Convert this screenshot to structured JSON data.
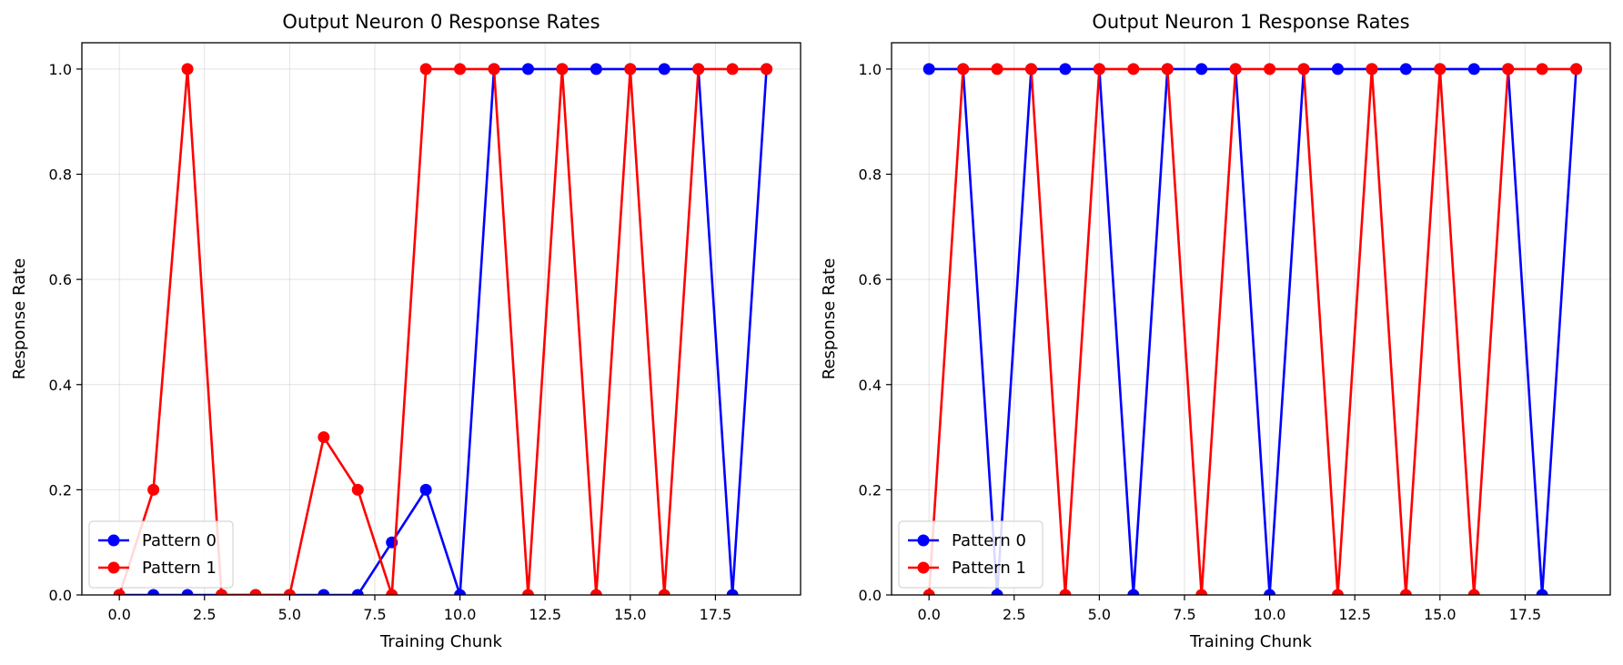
{
  "chart_data": [
    {
      "type": "line",
      "title": "Output Neuron 0 Response Rates",
      "xlabel": "Training Chunk",
      "ylabel": "Response Rate",
      "xlim": [
        -1.1,
        20.0
      ],
      "ylim": [
        0.0,
        1.05
      ],
      "xticks": [
        "0.0",
        "2.5",
        "5.0",
        "7.5",
        "10.0",
        "12.5",
        "15.0",
        "17.5"
      ],
      "yticks": [
        "0.0",
        "0.2",
        "0.4",
        "0.6",
        "0.8",
        "1.0"
      ],
      "grid": true,
      "legend_position": "lower-left",
      "x": [
        0,
        1,
        2,
        3,
        4,
        5,
        6,
        7,
        8,
        9,
        10,
        11,
        12,
        13,
        14,
        15,
        16,
        17,
        18,
        19
      ],
      "series": [
        {
          "name": "Pattern 0",
          "color": "#0000ff",
          "values": [
            0,
            0,
            0,
            0,
            0,
            0,
            0,
            0,
            0.1,
            0.2,
            0,
            1,
            1,
            1,
            1,
            1,
            1,
            1,
            0,
            1
          ]
        },
        {
          "name": "Pattern 1",
          "color": "#ff0000",
          "values": [
            0,
            0.2,
            1,
            0,
            0,
            0,
            0.3,
            0.2,
            0,
            1,
            1,
            1,
            0,
            1,
            0,
            1,
            0,
            1,
            1,
            1
          ]
        }
      ]
    },
    {
      "type": "line",
      "title": "Output Neuron 1 Response Rates",
      "xlabel": "Training Chunk",
      "ylabel": "Response Rate",
      "xlim": [
        -1.1,
        20.0
      ],
      "ylim": [
        0.0,
        1.05
      ],
      "xticks": [
        "0.0",
        "2.5",
        "5.0",
        "7.5",
        "10.0",
        "12.5",
        "15.0",
        "17.5"
      ],
      "yticks": [
        "0.0",
        "0.2",
        "0.4",
        "0.6",
        "0.8",
        "1.0"
      ],
      "grid": true,
      "legend_position": "lower-left",
      "x": [
        0,
        1,
        2,
        3,
        4,
        5,
        6,
        7,
        8,
        9,
        10,
        11,
        12,
        13,
        14,
        15,
        16,
        17,
        18,
        19
      ],
      "series": [
        {
          "name": "Pattern 0",
          "color": "#0000ff",
          "values": [
            1,
            1,
            0,
            1,
            1,
            1,
            0,
            1,
            1,
            1,
            0,
            1,
            1,
            1,
            1,
            1,
            1,
            1,
            0,
            1
          ]
        },
        {
          "name": "Pattern 1",
          "color": "#ff0000",
          "values": [
            0,
            1,
            1,
            1,
            0,
            1,
            1,
            1,
            0,
            1,
            1,
            1,
            0,
            1,
            0,
            1,
            0,
            1,
            1,
            1
          ]
        }
      ]
    }
  ]
}
